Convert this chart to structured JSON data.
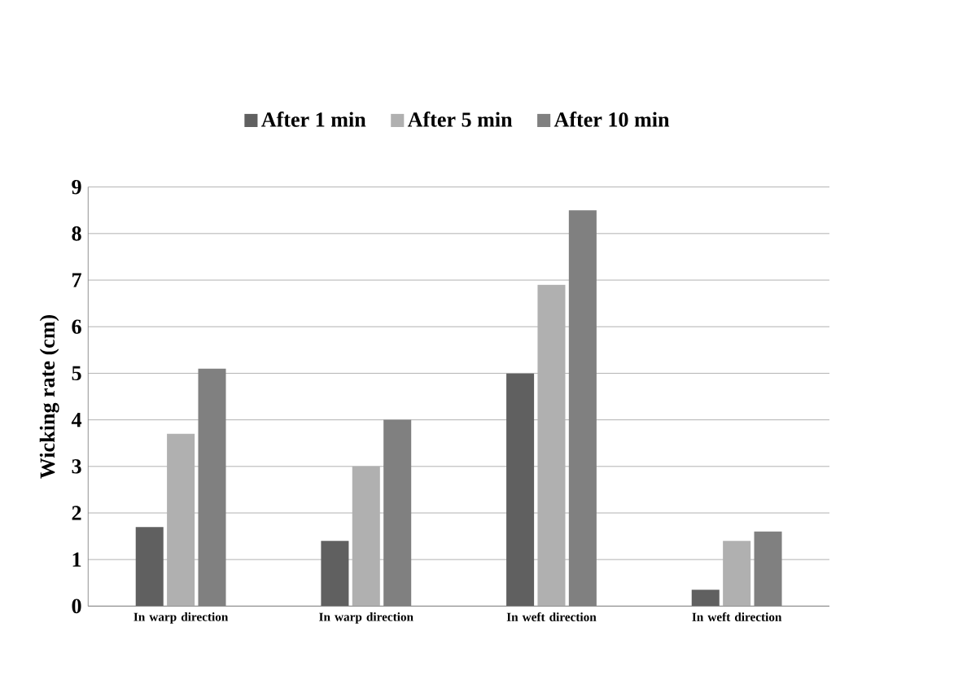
{
  "chart_data": {
    "type": "bar",
    "ylabel": "Wicking rate (cm)",
    "categories": [
      "In warp direction",
      "In warp direction",
      "In weft direction",
      "In weft direction"
    ],
    "series": [
      {
        "name": "After 1 min",
        "color": "#606060",
        "values": [
          1.7,
          1.4,
          5.0,
          0.35
        ]
      },
      {
        "name": "After 5 min",
        "color": "#b0b0b0",
        "values": [
          3.7,
          3.0,
          6.9,
          1.4
        ]
      },
      {
        "name": "After 10 min",
        "color": "#808080",
        "values": [
          5.1,
          4.0,
          8.5,
          1.6
        ]
      }
    ],
    "ylim": [
      0,
      9
    ],
    "yticks": [
      0,
      1,
      2,
      3,
      4,
      5,
      6,
      7,
      8,
      9
    ],
    "grid": "y",
    "legend": "top"
  }
}
